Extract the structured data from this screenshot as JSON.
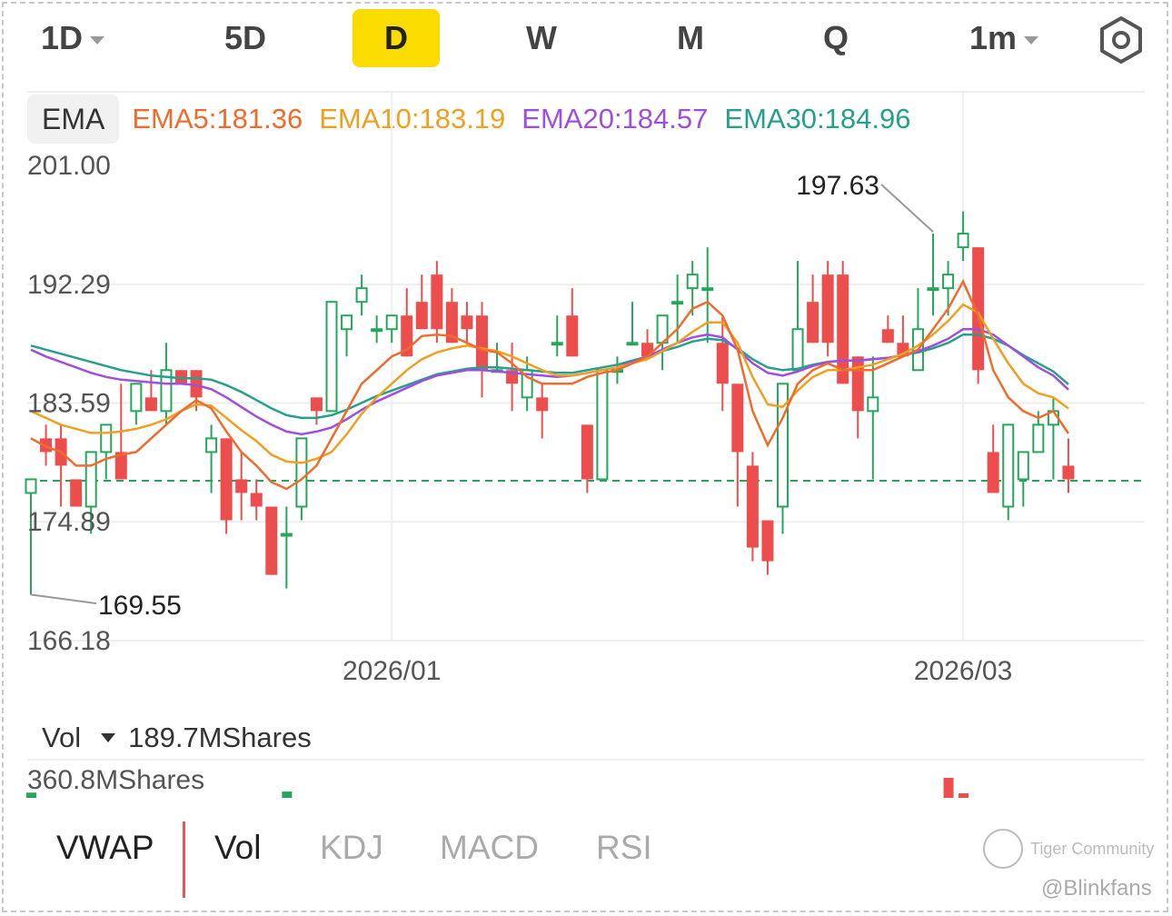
{
  "periods": [
    {
      "label": "1D",
      "dropdown": true,
      "active": false
    },
    {
      "label": "5D",
      "dropdown": false,
      "active": false
    },
    {
      "label": "D",
      "dropdown": false,
      "active": true
    },
    {
      "label": "W",
      "dropdown": false,
      "active": false
    },
    {
      "label": "M",
      "dropdown": false,
      "active": false
    },
    {
      "label": "Q",
      "dropdown": false,
      "active": false
    },
    {
      "label": "1m",
      "dropdown": true,
      "active": false
    }
  ],
  "settings_icon": "settings-hexagon-icon",
  "ema_legend": {
    "button": "EMA",
    "items": [
      {
        "text": "EMA5:181.36",
        "color": "#ef6c2c"
      },
      {
        "text": "EMA10:183.19",
        "color": "#f0a020"
      },
      {
        "text": "EMA20:184.57",
        "color": "#a04ee0"
      },
      {
        "text": "EMA30:184.96",
        "color": "#26a08c"
      }
    ]
  },
  "colors": {
    "up": "#26a65b",
    "down": "#ec4e4e",
    "grid": "#eeeeee",
    "axis_text": "#555555"
  },
  "chart_data": {
    "type": "candlestick",
    "ylim": [
      166.18,
      201.0
    ],
    "y_ticks": [
      "201.00",
      "192.29",
      "183.59",
      "174.89",
      "166.18"
    ],
    "x_ticks": [
      {
        "label": "2026/01",
        "index": 24
      },
      {
        "label": "2026/03",
        "index": 62
      }
    ],
    "high_label": {
      "text": "197.63",
      "index": 60
    },
    "low_label": {
      "text": "169.55",
      "index": 0
    },
    "last_price_line": 177.9,
    "candles": [
      {
        "o": 177,
        "h": 178,
        "l": 169.55,
        "c": 178
      },
      {
        "o": 181,
        "h": 182,
        "l": 179,
        "c": 180
      },
      {
        "o": 181,
        "h": 182,
        "l": 176,
        "c": 179
      },
      {
        "o": 178,
        "h": 178,
        "l": 176,
        "c": 176
      },
      {
        "o": 176,
        "h": 180,
        "l": 174,
        "c": 180
      },
      {
        "o": 180,
        "h": 182,
        "l": 178,
        "c": 182
      },
      {
        "o": 180,
        "h": 185,
        "l": 178,
        "c": 178
      },
      {
        "o": 183,
        "h": 185,
        "l": 182,
        "c": 185
      },
      {
        "o": 184,
        "h": 186,
        "l": 183,
        "c": 183
      },
      {
        "o": 183,
        "h": 188,
        "l": 182,
        "c": 186
      },
      {
        "o": 186,
        "h": 186,
        "l": 185,
        "c": 185
      },
      {
        "o": 186,
        "h": 186,
        "l": 183,
        "c": 184
      },
      {
        "o": 180,
        "h": 182,
        "l": 177,
        "c": 181
      },
      {
        "o": 181,
        "h": 181,
        "l": 174,
        "c": 175
      },
      {
        "o": 178,
        "h": 180,
        "l": 175,
        "c": 177
      },
      {
        "o": 177,
        "h": 178,
        "l": 175,
        "c": 176
      },
      {
        "o": 176,
        "h": 176,
        "l": 171,
        "c": 171
      },
      {
        "o": 174,
        "h": 176,
        "l": 170,
        "c": 174
      },
      {
        "o": 176,
        "h": 181,
        "l": 175,
        "c": 181
      },
      {
        "o": 184,
        "h": 184,
        "l": 182,
        "c": 183
      },
      {
        "o": 183,
        "h": 191,
        "l": 183,
        "c": 191
      },
      {
        "o": 189,
        "h": 190,
        "l": 187,
        "c": 190
      },
      {
        "o": 191,
        "h": 193,
        "l": 190,
        "c": 192
      },
      {
        "o": 189,
        "h": 190,
        "l": 188,
        "c": 189
      },
      {
        "o": 189,
        "h": 190,
        "l": 188,
        "c": 190
      },
      {
        "o": 190,
        "h": 192,
        "l": 187,
        "c": 187
      },
      {
        "o": 191,
        "h": 193,
        "l": 189,
        "c": 189
      },
      {
        "o": 193,
        "h": 194,
        "l": 188,
        "c": 189
      },
      {
        "o": 191,
        "h": 192,
        "l": 188,
        "c": 188
      },
      {
        "o": 190,
        "h": 191,
        "l": 188,
        "c": 189
      },
      {
        "o": 190,
        "h": 191,
        "l": 184,
        "c": 186
      },
      {
        "o": 186,
        "h": 188,
        "l": 186,
        "c": 186
      },
      {
        "o": 186,
        "h": 188,
        "l": 183,
        "c": 185
      },
      {
        "o": 184,
        "h": 187,
        "l": 183,
        "c": 186
      },
      {
        "o": 184,
        "h": 185,
        "l": 181,
        "c": 183
      },
      {
        "o": 188,
        "h": 190,
        "l": 187,
        "c": 188
      },
      {
        "o": 190,
        "h": 192,
        "l": 187,
        "c": 187
      },
      {
        "o": 182,
        "h": 182,
        "l": 177,
        "c": 178
      },
      {
        "o": 178,
        "h": 186,
        "l": 178,
        "c": 186
      },
      {
        "o": 186,
        "h": 187,
        "l": 185,
        "c": 186
      },
      {
        "o": 188,
        "h": 191,
        "l": 188,
        "c": 188
      },
      {
        "o": 188,
        "h": 189,
        "l": 187,
        "c": 187
      },
      {
        "o": 188,
        "h": 190,
        "l": 186,
        "c": 190
      },
      {
        "o": 191,
        "h": 193,
        "l": 188,
        "c": 191
      },
      {
        "o": 192,
        "h": 194,
        "l": 190,
        "c": 193
      },
      {
        "o": 192,
        "h": 195,
        "l": 188,
        "c": 192
      },
      {
        "o": 188,
        "h": 190,
        "l": 183,
        "c": 185
      },
      {
        "o": 185,
        "h": 185,
        "l": 176,
        "c": 180
      },
      {
        "o": 179,
        "h": 180,
        "l": 172,
        "c": 173
      },
      {
        "o": 175,
        "h": 175,
        "l": 171,
        "c": 172
      },
      {
        "o": 176,
        "h": 185,
        "l": 174,
        "c": 185
      },
      {
        "o": 186,
        "h": 194,
        "l": 186,
        "c": 189
      },
      {
        "o": 191,
        "h": 193,
        "l": 188,
        "c": 188
      },
      {
        "o": 193,
        "h": 194,
        "l": 187,
        "c": 188
      },
      {
        "o": 193,
        "h": 194,
        "l": 185,
        "c": 185
      },
      {
        "o": 187,
        "h": 187,
        "l": 181,
        "c": 183
      },
      {
        "o": 183,
        "h": 187,
        "l": 178,
        "c": 184
      },
      {
        "o": 189,
        "h": 190,
        "l": 188,
        "c": 188
      },
      {
        "o": 188,
        "h": 190,
        "l": 187,
        "c": 187
      },
      {
        "o": 186,
        "h": 192,
        "l": 186,
        "c": 189
      },
      {
        "o": 192,
        "h": 196,
        "l": 190,
        "c": 192
      },
      {
        "o": 192,
        "h": 194,
        "l": 190,
        "c": 193
      },
      {
        "o": 195,
        "h": 197.63,
        "l": 194,
        "c": 196
      },
      {
        "o": 195,
        "h": 195,
        "l": 185,
        "c": 186
      },
      {
        "o": 180,
        "h": 182,
        "l": 177,
        "c": 177
      },
      {
        "o": 176,
        "h": 182,
        "l": 175,
        "c": 182
      },
      {
        "o": 178,
        "h": 180,
        "l": 176,
        "c": 180
      },
      {
        "o": 180,
        "h": 183,
        "l": 180,
        "c": 182
      },
      {
        "o": 182,
        "h": 184,
        "l": 178,
        "c": 183
      },
      {
        "o": 179,
        "h": 181,
        "l": 177,
        "c": 178
      }
    ],
    "ema": {
      "EMA5": [
        181,
        180.4,
        180,
        179,
        179,
        179.5,
        179.8,
        180,
        181,
        182,
        183,
        183.8,
        183.2,
        181.5,
        180,
        179,
        177.8,
        177.3,
        178,
        179,
        181,
        183,
        185,
        186,
        187,
        187.5,
        188.5,
        188.6,
        188.5,
        188,
        187.5,
        187.3,
        186.5,
        185.5,
        185,
        185,
        185,
        185.5,
        185.8,
        186,
        186.5,
        187,
        188,
        189,
        190.5,
        191,
        190,
        187.5,
        183,
        180.5,
        182.5,
        185,
        186,
        186.5,
        186,
        186,
        186,
        186.5,
        187,
        187.5,
        189,
        190.5,
        192.5,
        190,
        186,
        184,
        183,
        182.5,
        183,
        181.36
      ],
      "EMA10": [
        183,
        182.5,
        182,
        181.7,
        181.4,
        181.4,
        181.5,
        181.7,
        182,
        182.4,
        183,
        183.5,
        183.4,
        182.5,
        181.6,
        180.8,
        179.8,
        179.3,
        179.2,
        179.5,
        180,
        181.3,
        182.8,
        184,
        185,
        186,
        186.8,
        187.3,
        187.6,
        187.8,
        187.6,
        187.4,
        187,
        186.5,
        186,
        185.6,
        185.6,
        185.8,
        186,
        186.2,
        186.5,
        186.8,
        187.4,
        188,
        188.8,
        189.5,
        189.5,
        188,
        185.5,
        183.5,
        183.3,
        184.5,
        185.5,
        186,
        186,
        186.2,
        186.4,
        186.8,
        187.2,
        187.8,
        188.6,
        189.6,
        190.8,
        190.2,
        188.3,
        186.5,
        185,
        184.3,
        184,
        183.19
      ],
      "EMA20": [
        187.5,
        187,
        186.6,
        186.2,
        185.8,
        185.5,
        185.3,
        185.2,
        185.1,
        185,
        185,
        184.9,
        184.6,
        184,
        183.3,
        182.6,
        182,
        181.5,
        181.3,
        181.5,
        181.8,
        182.4,
        183.1,
        183.7,
        184.2,
        184.7,
        185.2,
        185.6,
        185.8,
        186,
        186,
        185.9,
        185.8,
        185.7,
        185.6,
        185.5,
        185.6,
        185.8,
        186,
        186.2,
        186.6,
        187,
        187.5,
        188,
        188.4,
        188.6,
        188.4,
        187.5,
        186.5,
        185.8,
        185.6,
        185.9,
        186.3,
        186.6,
        186.7,
        186.7,
        186.8,
        186.9,
        187.1,
        187.4,
        187.8,
        188.3,
        189,
        189,
        188.6,
        187.8,
        187,
        186.2,
        185.6,
        184.57
      ],
      "EMA30": [
        187.8,
        187.5,
        187.2,
        186.9,
        186.6,
        186.3,
        186,
        185.8,
        185.6,
        185.5,
        185.4,
        185.4,
        185.3,
        184.9,
        184.4,
        183.8,
        183.2,
        182.7,
        182.5,
        182.5,
        182.7,
        183.1,
        183.6,
        184.1,
        184.5,
        184.9,
        185.3,
        185.7,
        185.9,
        186.1,
        186.2,
        186.2,
        186.1,
        186,
        185.9,
        185.8,
        185.8,
        186,
        186.2,
        186.4,
        186.7,
        187,
        187.4,
        187.7,
        188.1,
        188.3,
        188.2,
        187.6,
        186.8,
        186.2,
        186,
        186.1,
        186.4,
        186.6,
        186.7,
        186.7,
        186.8,
        186.9,
        187.1,
        187.3,
        187.6,
        188,
        188.6,
        188.6,
        188.3,
        187.8,
        187.1,
        186.5,
        185.9,
        184.96
      ]
    },
    "volume": {
      "label": "Vol",
      "current": "189.7MShares",
      "max_label": "360.8MShares",
      "visible_bars": [
        {
          "index": 0,
          "direction": "up",
          "fraction": 0.25
        },
        {
          "index": 17,
          "direction": "up",
          "fraction": 0.3
        },
        {
          "index": 61,
          "direction": "down",
          "fraction": 0.95
        },
        {
          "index": 62,
          "direction": "down",
          "fraction": 0.12
        }
      ]
    }
  },
  "indicators": [
    {
      "label": "VWAP",
      "on": true
    },
    {
      "label": "Vol",
      "on": true
    },
    {
      "label": "KDJ",
      "on": false
    },
    {
      "label": "MACD",
      "on": false
    },
    {
      "label": "RSI",
      "on": false
    }
  ],
  "watermark": "Tiger Community",
  "handle": "@Blinkfans"
}
